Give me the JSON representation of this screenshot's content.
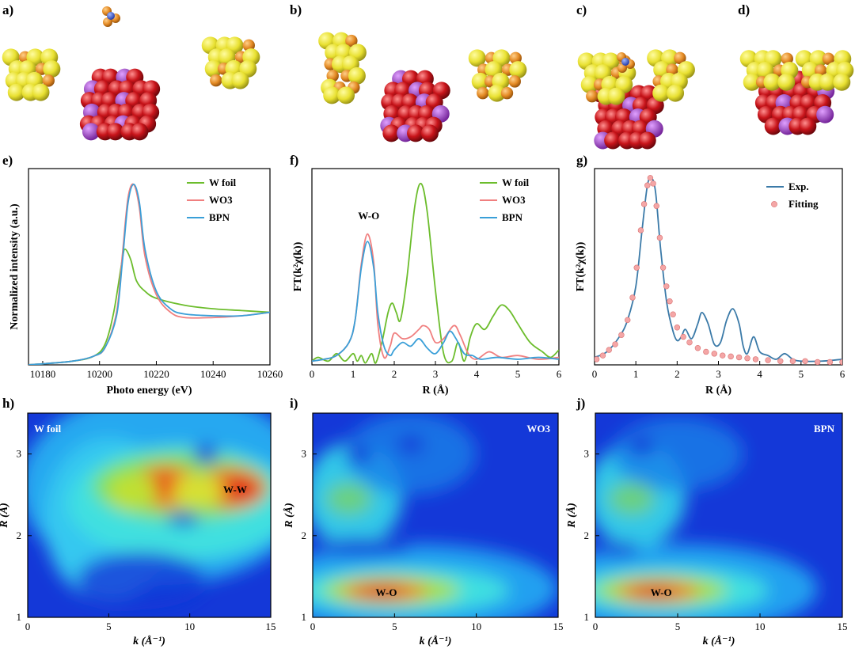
{
  "panel_labels": [
    "a)",
    "b)",
    "c)",
    "d)",
    "e)",
    "f)",
    "g)",
    "h)",
    "i)",
    "j)"
  ],
  "colors": {
    "w_foil": "#6cbd2c",
    "wo3": "#f07f7f",
    "bpn": "#3a9fd8",
    "exp": "#3b7aa8",
    "fitting": "#f4a6a6",
    "atom_yellow": "#e8e030",
    "atom_orange": "#e48a24",
    "atom_red": "#c8141a",
    "atom_purple": "#9030c0",
    "atom_blue": "#3050d0"
  },
  "chart_data": [
    {
      "panel": "e)",
      "type": "line",
      "xlabel": "Photo energy (eV)",
      "ylabel": "Normalized intensity (a.u.)",
      "xlim": [
        10175,
        10260
      ],
      "ylim": [
        0,
        1.12
      ],
      "xticks": [
        10180,
        10200,
        10220,
        10240,
        10260
      ],
      "legend_position": "top-right",
      "series": [
        {
          "name": "W foil",
          "color_key": "w_foil",
          "x": [
            10175,
            10190,
            10198,
            10202,
            10205,
            10208,
            10209,
            10211,
            10213,
            10216,
            10220,
            10230,
            10240,
            10250,
            10260
          ],
          "y": [
            0.0,
            0.02,
            0.05,
            0.12,
            0.3,
            0.6,
            0.66,
            0.6,
            0.48,
            0.42,
            0.38,
            0.34,
            0.32,
            0.31,
            0.3
          ]
        },
        {
          "name": "WO3",
          "color_key": "wo3",
          "x": [
            10175,
            10190,
            10198,
            10202,
            10206,
            10208,
            10210,
            10212,
            10214,
            10216,
            10220,
            10225,
            10230,
            10240,
            10250,
            10260
          ],
          "y": [
            0.0,
            0.02,
            0.05,
            0.1,
            0.3,
            0.62,
            0.95,
            1.03,
            0.9,
            0.62,
            0.4,
            0.3,
            0.27,
            0.27,
            0.28,
            0.3
          ]
        },
        {
          "name": "BPN",
          "color_key": "bpn",
          "x": [
            10175,
            10190,
            10198,
            10202,
            10206,
            10208,
            10210,
            10212,
            10214,
            10216,
            10220,
            10225,
            10230,
            10240,
            10250,
            10260
          ],
          "y": [
            0.0,
            0.02,
            0.05,
            0.1,
            0.28,
            0.58,
            0.92,
            1.03,
            0.93,
            0.66,
            0.42,
            0.32,
            0.29,
            0.28,
            0.28,
            0.3
          ]
        }
      ]
    },
    {
      "panel": "f)",
      "type": "line",
      "xlabel": "R (Å)",
      "ylabel": "FT(k²χ(k))",
      "xlim": [
        0,
        6
      ],
      "ylim": [
        0,
        1.05
      ],
      "xticks": [
        0,
        1,
        2,
        3,
        4,
        5,
        6
      ],
      "legend_position": "top-right",
      "annotations": [
        {
          "text": "W-O",
          "x": 1.38,
          "y": 0.78
        }
      ],
      "series": [
        {
          "name": "W foil",
          "color_key": "w_foil",
          "x": [
            0,
            0.15,
            0.4,
            0.6,
            0.8,
            1.0,
            1.1,
            1.2,
            1.3,
            1.45,
            1.55,
            1.7,
            1.85,
            1.95,
            2.05,
            2.15,
            2.3,
            2.5,
            2.65,
            2.8,
            3.0,
            3.2,
            3.4,
            3.55,
            3.7,
            3.85,
            4.0,
            4.2,
            4.4,
            4.6,
            4.8,
            5.0,
            5.3,
            5.6,
            5.8,
            6.0
          ],
          "y": [
            0.02,
            0.04,
            0.02,
            0.06,
            0.02,
            0.06,
            0.02,
            0.05,
            0.01,
            0.06,
            0.01,
            0.12,
            0.28,
            0.33,
            0.28,
            0.24,
            0.45,
            0.85,
            0.97,
            0.82,
            0.4,
            0.06,
            0.02,
            0.12,
            0.02,
            0.15,
            0.22,
            0.19,
            0.26,
            0.32,
            0.29,
            0.22,
            0.12,
            0.07,
            0.04,
            0.08
          ]
        },
        {
          "name": "WO3",
          "color_key": "wo3",
          "x": [
            0,
            0.3,
            0.6,
            0.9,
            1.05,
            1.2,
            1.35,
            1.5,
            1.6,
            1.75,
            1.9,
            2.0,
            2.2,
            2.4,
            2.6,
            2.7,
            2.85,
            3.0,
            3.2,
            3.45,
            3.6,
            3.8,
            4.0,
            4.3,
            4.6,
            5.0,
            5.5,
            6.0
          ],
          "y": [
            0.02,
            0.03,
            0.05,
            0.12,
            0.24,
            0.54,
            0.7,
            0.55,
            0.22,
            0.04,
            0.1,
            0.17,
            0.14,
            0.15,
            0.19,
            0.21,
            0.19,
            0.12,
            0.14,
            0.21,
            0.16,
            0.06,
            0.03,
            0.07,
            0.04,
            0.05,
            0.03,
            0.04
          ]
        },
        {
          "name": "BPN",
          "color_key": "bpn",
          "x": [
            0,
            0.3,
            0.6,
            0.9,
            1.05,
            1.2,
            1.35,
            1.5,
            1.6,
            1.75,
            1.9,
            2.0,
            2.2,
            2.4,
            2.6,
            2.8,
            3.0,
            3.2,
            3.35,
            3.5,
            3.7,
            3.9,
            4.1,
            4.5,
            5.0,
            5.5,
            6.0
          ],
          "y": [
            0.02,
            0.03,
            0.05,
            0.12,
            0.24,
            0.52,
            0.66,
            0.52,
            0.28,
            0.1,
            0.05,
            0.08,
            0.12,
            0.1,
            0.14,
            0.09,
            0.06,
            0.12,
            0.18,
            0.14,
            0.06,
            0.05,
            0.03,
            0.04,
            0.03,
            0.04,
            0.03
          ]
        }
      ]
    },
    {
      "panel": "g)",
      "type": "line",
      "xlabel": "R (Å)",
      "ylabel": "FT(k²χ(k))",
      "xlim": [
        0,
        6
      ],
      "ylim": [
        0,
        1.05
      ],
      "xticks": [
        0,
        1,
        2,
        3,
        4,
        5,
        6
      ],
      "legend_position": "top-right",
      "series": [
        {
          "name": "Exp.",
          "color_key": "exp",
          "x": [
            0,
            0.3,
            0.6,
            0.8,
            1.0,
            1.15,
            1.28,
            1.38,
            1.48,
            1.6,
            1.75,
            1.9,
            2.0,
            2.1,
            2.2,
            2.35,
            2.5,
            2.6,
            2.75,
            2.9,
            3.05,
            3.2,
            3.35,
            3.5,
            3.6,
            3.7,
            3.85,
            4.0,
            4.2,
            4.4,
            4.6,
            4.8,
            5.0,
            5.5,
            6.0
          ],
          "y": [
            0.04,
            0.07,
            0.15,
            0.24,
            0.42,
            0.72,
            0.96,
            1.0,
            0.92,
            0.62,
            0.33,
            0.18,
            0.13,
            0.15,
            0.19,
            0.14,
            0.22,
            0.28,
            0.22,
            0.11,
            0.12,
            0.24,
            0.3,
            0.22,
            0.1,
            0.06,
            0.15,
            0.07,
            0.05,
            0.03,
            0.06,
            0.03,
            0.02,
            0.02,
            0.03
          ]
        },
        {
          "name": "Fitting",
          "color_key": "fitting",
          "style": "markers",
          "x": [
            0.05,
            0.2,
            0.35,
            0.5,
            0.65,
            0.8,
            0.92,
            1.02,
            1.12,
            1.2,
            1.28,
            1.35,
            1.42,
            1.5,
            1.58,
            1.66,
            1.74,
            1.82,
            1.9,
            2.0,
            2.15,
            2.3,
            2.5,
            2.7,
            2.9,
            3.1,
            3.3,
            3.5,
            3.7,
            3.9,
            4.2,
            4.5,
            4.8,
            5.1,
            5.4,
            5.7,
            6.0
          ],
          "y": [
            0.03,
            0.05,
            0.08,
            0.11,
            0.16,
            0.24,
            0.36,
            0.52,
            0.72,
            0.86,
            0.96,
            1.0,
            0.97,
            0.85,
            0.68,
            0.52,
            0.42,
            0.34,
            0.27,
            0.2,
            0.15,
            0.12,
            0.09,
            0.07,
            0.06,
            0.05,
            0.045,
            0.04,
            0.035,
            0.03,
            0.025,
            0.02,
            0.02,
            0.02,
            0.015,
            0.015,
            0.015
          ]
        }
      ]
    },
    {
      "panel": "h)",
      "type": "heatmap",
      "title": "W foil",
      "xlabel": "k (Å⁻¹)",
      "ylabel": "R (Å)",
      "xlim": [
        0,
        15
      ],
      "ylim": [
        1,
        3.5
      ],
      "xticks": [
        0,
        5,
        10,
        15
      ],
      "yticks": [
        1,
        2,
        3
      ],
      "annotations": [
        {
          "text": "W-W",
          "x": 12.8,
          "y": 2.57
        }
      ]
    },
    {
      "panel": "i)",
      "type": "heatmap",
      "title": "WO3",
      "xlabel": "k (Å⁻¹)",
      "ylabel": "R (Å)",
      "xlim": [
        0,
        15
      ],
      "ylim": [
        1,
        3.5
      ],
      "xticks": [
        0,
        5,
        10,
        15
      ],
      "yticks": [
        1,
        2,
        3
      ],
      "annotations": [
        {
          "text": "W-O",
          "x": 4.5,
          "y": 1.31
        }
      ]
    },
    {
      "panel": "j)",
      "type": "heatmap",
      "title": "BPN",
      "xlabel": "k (Å⁻¹)",
      "ylabel": "R (Å)",
      "xlim": [
        0,
        15
      ],
      "ylim": [
        1,
        3.5
      ],
      "xticks": [
        0,
        5,
        10,
        15
      ],
      "yticks": [
        1,
        2,
        3
      ],
      "annotations": [
        {
          "text": "W-O",
          "x": 4.0,
          "y": 1.31
        }
      ]
    }
  ]
}
